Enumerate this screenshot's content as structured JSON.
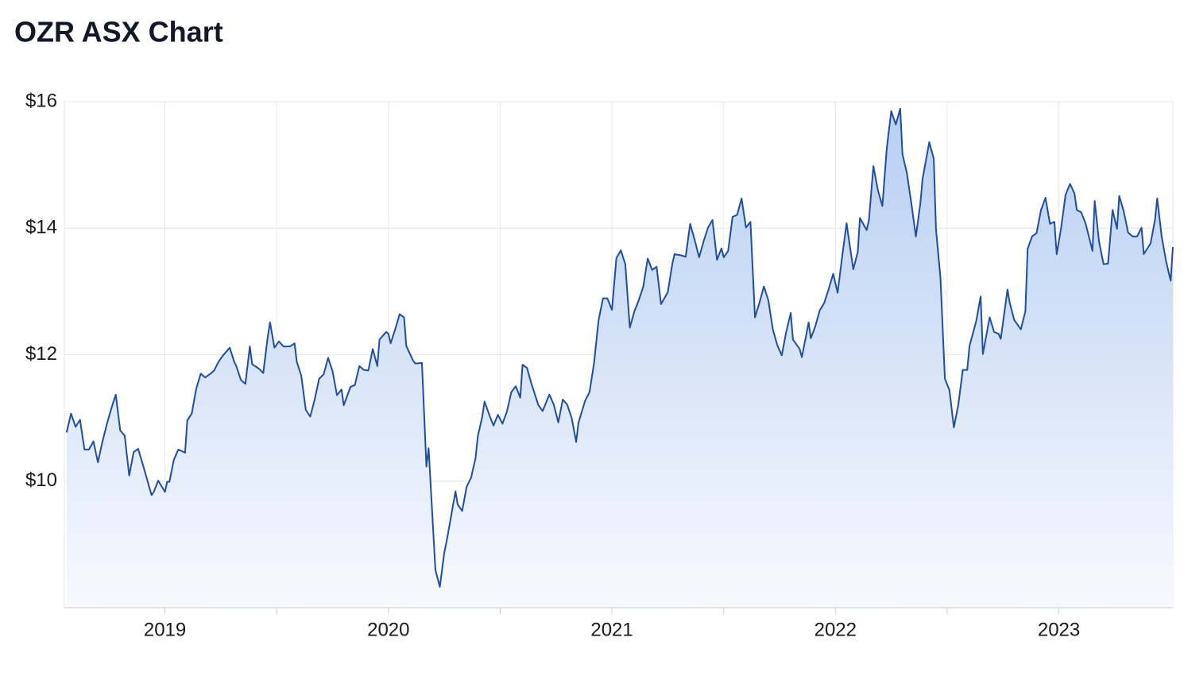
{
  "chart_data": {
    "type": "area",
    "title": "OZR ASX Chart",
    "color": "#1f4e9e",
    "xlim": [
      2018.55,
      2023.51
    ],
    "xticks": [
      2019,
      2020,
      2021,
      2022,
      2023
    ],
    "x_minor_grid": [
      2019.5,
      2020.5,
      2021.5,
      2022.5
    ],
    "ylim": [
      8,
      16
    ],
    "yticks": [
      {
        "value": 10,
        "label": "$10"
      },
      {
        "value": 12,
        "label": "$12"
      },
      {
        "value": 14,
        "label": "$14"
      },
      {
        "value": 16,
        "label": "$16"
      }
    ],
    "grid": true,
    "x": [
      2018.56,
      2018.58,
      2018.6,
      2018.62,
      2018.64,
      2018.66,
      2018.68,
      2018.7,
      2018.72,
      2018.74,
      2018.76,
      2018.78,
      2018.8,
      2018.82,
      2018.84,
      2018.86,
      2018.88,
      2018.9,
      2018.94,
      2018.95,
      2018.97,
      2019.0,
      2019.01,
      2019.02,
      2019.04,
      2019.06,
      2019.09,
      2019.1,
      2019.12,
      2019.14,
      2019.16,
      2019.18,
      2019.2,
      2019.22,
      2019.24,
      2019.26,
      2019.29,
      2019.31,
      2019.32,
      2019.34,
      2019.36,
      2019.38,
      2019.39,
      2019.42,
      2019.44,
      2019.46,
      2019.47,
      2019.49,
      2019.51,
      2019.53,
      2019.56,
      2019.58,
      2019.59,
      2019.61,
      2019.63,
      2019.65,
      2019.67,
      2019.69,
      2019.71,
      2019.73,
      2019.75,
      2019.77,
      2019.79,
      2019.8,
      2019.83,
      2019.85,
      2019.87,
      2019.89,
      2019.91,
      2019.93,
      2019.95,
      2019.96,
      2019.99,
      2020.0,
      2020.01,
      2020.03,
      2020.05,
      2020.07,
      2020.08,
      2020.11,
      2020.12,
      2020.15,
      2020.17,
      2020.18,
      2020.21,
      2020.23,
      2020.25,
      2020.26,
      2020.28,
      2020.3,
      2020.31,
      2020.33,
      2020.35,
      2020.37,
      2020.39,
      2020.4,
      2020.42,
      2020.43,
      2020.45,
      2020.47,
      2020.49,
      2020.51,
      2020.53,
      2020.55,
      2020.57,
      2020.59,
      2020.6,
      2020.62,
      2020.64,
      2020.67,
      2020.69,
      2020.72,
      2020.74,
      2020.76,
      2020.78,
      2020.8,
      2020.82,
      2020.84,
      2020.85,
      2020.88,
      2020.9,
      2020.92,
      2020.94,
      2020.96,
      2020.98,
      2021.0,
      2021.02,
      2021.04,
      2021.06,
      2021.08,
      2021.1,
      2021.12,
      2021.14,
      2021.16,
      2021.18,
      2021.2,
      2021.22,
      2021.25,
      2021.27,
      2021.28,
      2021.31,
      2021.33,
      2021.35,
      2021.37,
      2021.39,
      2021.41,
      2021.43,
      2021.45,
      2021.47,
      2021.49,
      2021.5,
      2021.52,
      2021.54,
      2021.56,
      2021.58,
      2021.6,
      2021.62,
      2021.64,
      2021.66,
      2021.68,
      2021.7,
      2021.72,
      2021.74,
      2021.76,
      2021.78,
      2021.8,
      2021.81,
      2021.84,
      2021.85,
      2021.88,
      2021.89,
      2021.91,
      2021.93,
      2021.95,
      2021.97,
      2021.99,
      2022.01,
      2022.03,
      2022.05,
      2022.06,
      2022.08,
      2022.1,
      2022.11,
      2022.14,
      2022.15,
      2022.17,
      2022.19,
      2022.21,
      2022.23,
      2022.25,
      2022.27,
      2022.29,
      2022.3,
      2022.32,
      2022.34,
      2022.36,
      2022.38,
      2022.39,
      2022.42,
      2022.44,
      2022.45,
      2022.47,
      2022.49,
      2022.51,
      2022.53,
      2022.55,
      2022.57,
      2022.59,
      2022.6,
      2022.63,
      2022.65,
      2022.66,
      2022.69,
      2022.71,
      2022.73,
      2022.74,
      2022.77,
      2022.78,
      2022.8,
      2022.83,
      2022.85,
      2022.86,
      2022.88,
      2022.9,
      2022.92,
      2022.94,
      2022.96,
      2022.98,
      2022.99,
      2023.01,
      2023.03,
      2023.05,
      2023.07,
      2023.08,
      2023.1,
      2023.12,
      2023.15,
      2023.16,
      2023.18,
      2023.2,
      2023.22,
      2023.24,
      2023.26,
      2023.27,
      2023.29,
      2023.31,
      2023.33,
      2023.35,
      2023.37,
      2023.38,
      2023.41,
      2023.43,
      2023.44,
      2023.46,
      2023.48,
      2023.5,
      2023.51
    ],
    "values": [
      10.77,
      11.07,
      10.86,
      10.97,
      10.5,
      10.5,
      10.63,
      10.3,
      10.62,
      10.9,
      11.15,
      11.37,
      10.8,
      10.72,
      10.09,
      10.46,
      10.51,
      10.28,
      9.78,
      9.83,
      10.01,
      9.83,
      9.99,
      9.99,
      10.34,
      10.5,
      10.45,
      10.96,
      11.07,
      11.46,
      11.7,
      11.64,
      11.69,
      11.75,
      11.89,
      11.99,
      12.11,
      11.89,
      11.81,
      11.6,
      11.54,
      12.13,
      11.85,
      11.78,
      11.71,
      12.28,
      12.51,
      12.11,
      12.21,
      12.13,
      12.13,
      12.18,
      11.89,
      11.67,
      11.13,
      11.02,
      11.29,
      11.62,
      11.69,
      11.95,
      11.74,
      11.36,
      11.45,
      11.2,
      11.49,
      11.52,
      11.82,
      11.76,
      11.75,
      12.09,
      11.82,
      12.24,
      12.36,
      12.33,
      12.18,
      12.4,
      12.64,
      12.59,
      12.14,
      11.91,
      11.86,
      11.87,
      10.23,
      10.52,
      8.6,
      8.33,
      8.87,
      9.04,
      9.44,
      9.84,
      9.63,
      9.53,
      9.91,
      10.06,
      10.37,
      10.71,
      11.02,
      11.26,
      11.06,
      10.88,
      11.05,
      10.91,
      11.1,
      11.41,
      11.5,
      11.32,
      11.84,
      11.79,
      11.54,
      11.21,
      11.11,
      11.37,
      11.21,
      10.93,
      11.29,
      11.21,
      11.0,
      10.62,
      10.92,
      11.27,
      11.41,
      11.87,
      12.54,
      12.89,
      12.89,
      12.71,
      13.53,
      13.65,
      13.43,
      12.43,
      12.68,
      12.86,
      13.07,
      13.52,
      13.34,
      13.39,
      12.8,
      12.99,
      13.43,
      13.59,
      13.57,
      13.55,
      14.07,
      13.82,
      13.54,
      13.79,
      14.01,
      14.13,
      13.5,
      13.68,
      13.54,
      13.64,
      14.18,
      14.21,
      14.47,
      14.01,
      14.1,
      12.59,
      12.82,
      13.08,
      12.86,
      12.4,
      12.15,
      11.99,
      12.36,
      12.66,
      12.24,
      12.09,
      11.96,
      12.51,
      12.26,
      12.45,
      12.7,
      12.82,
      13.04,
      13.28,
      12.98,
      13.54,
      14.08,
      13.83,
      13.35,
      13.62,
      14.16,
      13.97,
      14.13,
      14.98,
      14.6,
      14.35,
      15.27,
      15.85,
      15.64,
      15.89,
      15.17,
      14.87,
      14.39,
      13.87,
      14.39,
      14.78,
      15.36,
      15.1,
      13.98,
      13.22,
      11.62,
      11.44,
      10.85,
      11.21,
      11.76,
      11.76,
      12.14,
      12.53,
      12.92,
      12.01,
      12.59,
      12.36,
      12.33,
      12.25,
      13.03,
      12.82,
      12.55,
      12.4,
      12.69,
      13.67,
      13.87,
      13.92,
      14.29,
      14.48,
      14.07,
      14.1,
      13.59,
      14.01,
      14.53,
      14.7,
      14.55,
      14.29,
      14.25,
      14.07,
      13.64,
      14.43,
      13.78,
      13.43,
      13.44,
      14.29,
      13.99,
      14.51,
      14.27,
      13.93,
      13.87,
      13.87,
      14.01,
      13.59,
      13.76,
      14.13,
      14.47,
      13.87,
      13.47,
      13.17,
      13.7
    ]
  }
}
